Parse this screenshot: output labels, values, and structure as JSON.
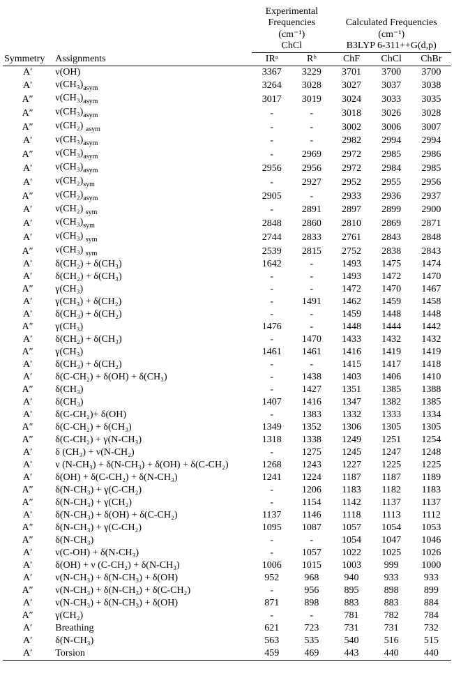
{
  "headers": {
    "symmetry": "Symmetry",
    "assignments": "Assignments",
    "exp": "Experimental Frequencies",
    "calc": "Calculated Frequencies",
    "unit": "(cm⁻¹)",
    "chcl": "ChCl",
    "method": "B3LYP 6-311++G(d,p)",
    "ir": "IRᵃ",
    "r": "Rᵇ",
    "chf": "ChF",
    "chcl2": "ChCl",
    "chbr": "ChBr"
  },
  "rows": [
    {
      "sym": "A′",
      "assign": "ν(OH)",
      "ir": "3367",
      "r": "3229",
      "chf": "3701",
      "chcl": "3700",
      "chbr": "3700"
    },
    {
      "sym": "A′",
      "assign": "ν(CH₃)<sub>asym</sub>",
      "ir": "3264",
      "r": "3028",
      "chf": "3027",
      "chcl": "3037",
      "chbr": "3038"
    },
    {
      "sym": "A″",
      "assign": "ν(CH₃)<sub>asym</sub>",
      "ir": "3017",
      "r": "3019",
      "chf": "3024",
      "chcl": "3033",
      "chbr": "3035"
    },
    {
      "sym": "A″",
      "assign": "ν(CH₃)<sub>asym</sub>",
      "ir": "-",
      "r": "-",
      "chf": "3018",
      "chcl": "3026",
      "chbr": "3028"
    },
    {
      "sym": "A″",
      "assign": "ν(CH₂) <sub>asym</sub>",
      "ir": "-",
      "r": "-",
      "chf": "3002",
      "chcl": "3006",
      "chbr": "3007"
    },
    {
      "sym": "A′",
      "assign": "ν(CH₃)<sub>asym</sub>",
      "ir": "-",
      "r": "-",
      "chf": "2982",
      "chcl": "2994",
      "chbr": "2994"
    },
    {
      "sym": "A″",
      "assign": "ν(CH₃)<sub>asym</sub>",
      "ir": "-",
      "r": "2969",
      "chf": "2972",
      "chcl": "2985",
      "chbr": "2986"
    },
    {
      "sym": "A′",
      "assign": "ν(CH₃)<sub>asym</sub>",
      "ir": "2956",
      "r": "2956",
      "chf": "2972",
      "chcl": "2984",
      "chbr": "2985"
    },
    {
      "sym": "A′",
      "assign": "ν(CH₂)<sub>sym</sub>",
      "ir": "-",
      "r": "2927",
      "chf": "2952",
      "chcl": "2955",
      "chbr": "2956"
    },
    {
      "sym": "A″",
      "assign": "ν(CH₂)<sub>asym</sub>",
      "ir": "2905",
      "r": "-",
      "chf": "2933",
      "chcl": "2936",
      "chbr": "2937"
    },
    {
      "sym": "A′",
      "assign": "ν(CH₂) <sub>sym</sub>",
      "ir": "-",
      "r": "2891",
      "chf": "2897",
      "chcl": "2899",
      "chbr": "2900"
    },
    {
      "sym": "A′",
      "assign": "ν(CH₃)<sub>sym</sub>",
      "ir": "2848",
      "r": "2860",
      "chf": "2810",
      "chcl": "2869",
      "chbr": "2871"
    },
    {
      "sym": "A′",
      "assign": "ν(CH₃) <sub>sym</sub>",
      "ir": "2744",
      "r": "2833",
      "chf": "2761",
      "chcl": "2843",
      "chbr": "2848"
    },
    {
      "sym": "A″",
      "assign": "ν(CH₃) <sub>sym</sub>",
      "ir": "2539",
      "r": "2815",
      "chf": "2752",
      "chcl": "2838",
      "chbr": "2843"
    },
    {
      "sym": "A′",
      "assign": "δ(CH₂) + δ(CH₃)",
      "ir": "1642",
      "r": "-",
      "chf": "1493",
      "chcl": "1475",
      "chbr": "1474"
    },
    {
      "sym": "A′",
      "assign": "δ(CH₂) + δ(CH₃)",
      "ir": "-",
      "r": "-",
      "chf": "1493",
      "chcl": "1472",
      "chbr": "1470"
    },
    {
      "sym": "A″",
      "assign": "γ(CH₃)",
      "ir": "-",
      "r": "-",
      "chf": "1472",
      "chcl": "1470",
      "chbr": "1467"
    },
    {
      "sym": "A′",
      "assign": "γ(CH₃) + δ(CH₂)",
      "ir": "-",
      "r": "1491",
      "chf": "1462",
      "chcl": "1459",
      "chbr": "1458"
    },
    {
      "sym": "A′",
      "assign": "δ(CH₃) + δ(CH₂)",
      "ir": "-",
      "r": "-",
      "chf": "1459",
      "chcl": "1448",
      "chbr": "1448"
    },
    {
      "sym": "A″",
      "assign": "γ(CH₃)",
      "ir": "1476",
      "r": "-",
      "chf": "1448",
      "chcl": "1444",
      "chbr": "1442"
    },
    {
      "sym": "A′",
      "assign": "δ(CH₂) + δ(CH₃)",
      "ir": "-",
      "r": "1470",
      "chf": "1433",
      "chcl": "1432",
      "chbr": "1432"
    },
    {
      "sym": "A″",
      "assign": "γ(CH₃)",
      "ir": "1461",
      "r": "1461",
      "chf": "1416",
      "chcl": "1419",
      "chbr": "1419"
    },
    {
      "sym": "A′",
      "assign": "δ(CH₃) + δ(CH₂)",
      "ir": "-",
      "r": "-",
      "chf": "1415",
      "chcl": "1417",
      "chbr": "1418"
    },
    {
      "sym": "A′",
      "assign": "δ(C-CH₂) + δ(OH) + δ(CH₃)",
      "ir": "-",
      "r": "1438",
      "chf": "1403",
      "chcl": "1406",
      "chbr": "1410"
    },
    {
      "sym": "A″",
      "assign": "δ(CH₃)",
      "ir": "-",
      "r": "1427",
      "chf": "1351",
      "chcl": "1385",
      "chbr": "1388"
    },
    {
      "sym": "A′",
      "assign": "δ(CH₃)",
      "ir": "1407",
      "r": "1416",
      "chf": "1347",
      "chcl": "1382",
      "chbr": "1385"
    },
    {
      "sym": "A′",
      "assign": "δ(C-CH₂)+ δ(OH)",
      "ir": "-",
      "r": "1383",
      "chf": "1332",
      "chcl": "1333",
      "chbr": "1334"
    },
    {
      "sym": "A″",
      "assign": "δ(C-CH₂) + δ(CH₃)",
      "ir": "1349",
      "r": "1352",
      "chf": "1306",
      "chcl": "1305",
      "chbr": "1305"
    },
    {
      "sym": "A″",
      "assign": "δ(C-CH₂) + γ(N-CH₃)",
      "ir": "1318",
      "r": "1338",
      "chf": "1249",
      "chcl": "1251",
      "chbr": "1254"
    },
    {
      "sym": "A′",
      "assign": "δ (CH₃) + ν(N-CH₂)",
      "ir": "-",
      "r": "1275",
      "chf": "1245",
      "chcl": "1247",
      "chbr": "1248"
    },
    {
      "sym": "A′",
      "assign": "ν (N-CH₃) + δ(N-CH₃) + δ(OH) + δ(C-CH₂)",
      "ir": "1268",
      "r": "1243",
      "chf": "1227",
      "chcl": "1225",
      "chbr": "1225"
    },
    {
      "sym": "A′",
      "assign": "δ(OH) + δ(C-CH₂) + δ(N-CH₃)",
      "ir": "1241",
      "r": "1224",
      "chf": "1187",
      "chcl": "1187",
      "chbr": "1189"
    },
    {
      "sym": "A″",
      "assign": "δ(N-CH₃) + γ(C-CH₂)",
      "ir": "-",
      "r": "1206",
      "chf": "1183",
      "chcl": "1182",
      "chbr": "1183"
    },
    {
      "sym": "A″",
      "assign": "δ(N-CH₃) + γ(CH₂)",
      "ir": "-",
      "r": "1154",
      "chf": "1142",
      "chcl": "1137",
      "chbr": "1137"
    },
    {
      "sym": "A′",
      "assign": "δ(N-CH₃) + δ(OH) + δ(C-CH₂)",
      "ir": "1137",
      "r": "1146",
      "chf": "1118",
      "chcl": "1113",
      "chbr": "1112"
    },
    {
      "sym": "A″",
      "assign": "δ(N-CH₃) + γ(C-CH₂)",
      "ir": "1095",
      "r": "1087",
      "chf": "1057",
      "chcl": "1054",
      "chbr": "1053"
    },
    {
      "sym": "A″",
      "assign": "δ(N-CH₃)",
      "ir": "-",
      "r": "-",
      "chf": "1054",
      "chcl": "1047",
      "chbr": "1046"
    },
    {
      "sym": "A′",
      "assign": "ν(C-OH) + δ(N-CH₃)",
      "ir": "-",
      "r": "1057",
      "chf": "1022",
      "chcl": "1025",
      "chbr": "1026"
    },
    {
      "sym": "A′",
      "assign": "δ(OH) + ν (C-CH₂) + δ(N-CH₃)",
      "ir": "1006",
      "r": "1015",
      "chf": "1003",
      "chcl": "999",
      "chbr": "1000"
    },
    {
      "sym": "A′",
      "assign": "ν(N-CH₃) + δ(N-CH₃) + δ(OH)",
      "ir": "952",
      "r": "968",
      "chf": "940",
      "chcl": "933",
      "chbr": "933"
    },
    {
      "sym": "A″",
      "assign": "ν(N-CH₃) + δ(N-CH₃) + δ(C-CH₂)",
      "ir": "-",
      "r": "956",
      "chf": "895",
      "chcl": "898",
      "chbr": "899"
    },
    {
      "sym": "A′",
      "assign": "ν(N-CH₃) + δ(N-CH₃) + δ(OH)",
      "ir": "871",
      "r": "898",
      "chf": "883",
      "chcl": "883",
      "chbr": "884"
    },
    {
      "sym": "A″",
      "assign": "γ(CH₂)",
      "ir": "-",
      "r": "-",
      "chf": "781",
      "chcl": "782",
      "chbr": "784"
    },
    {
      "sym": "A′",
      "assign": "Breathing",
      "ir": "621",
      "r": "723",
      "chf": "731",
      "chcl": "731",
      "chbr": "732"
    },
    {
      "sym": "A′",
      "assign": "δ(N-CH₃)",
      "ir": "563",
      "r": "535",
      "chf": "540",
      "chcl": "516",
      "chbr": "515"
    },
    {
      "sym": "A′",
      "assign": "Torsion",
      "ir": "459",
      "r": "469",
      "chf": "443",
      "chcl": "440",
      "chbr": "440"
    }
  ]
}
